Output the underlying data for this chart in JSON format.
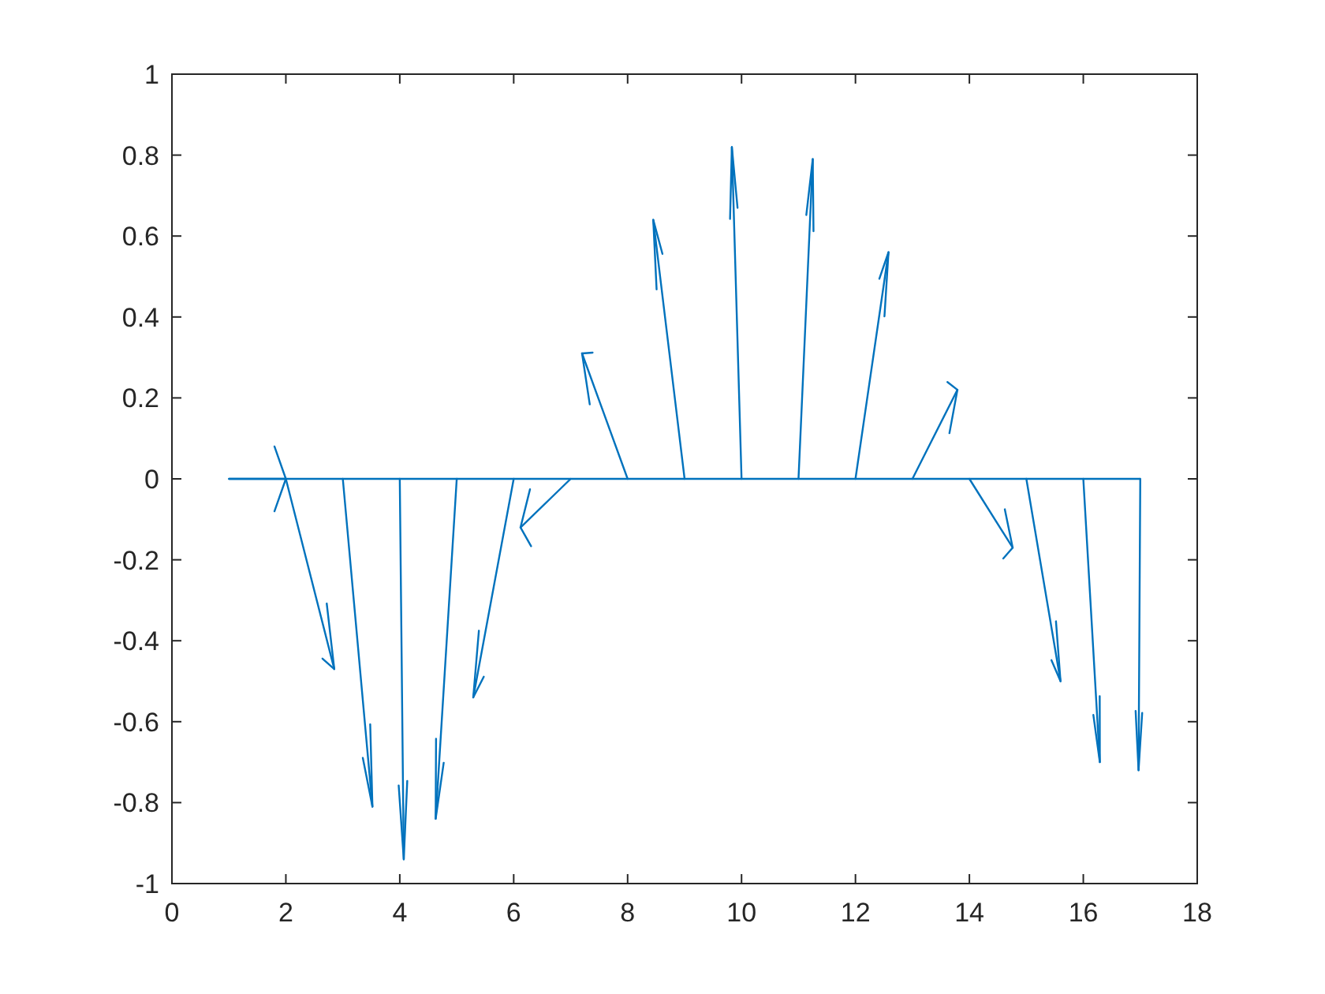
{
  "chart_data": {
    "type": "line",
    "color": "#0072bd",
    "xlim": [
      0,
      18
    ],
    "xticks": [
      0,
      2,
      4,
      6,
      8,
      10,
      12,
      14,
      16,
      18
    ],
    "ylim": [
      -1,
      1
    ],
    "yticks": [
      -1,
      -0.8,
      -0.6,
      -0.4,
      -0.2,
      0,
      0.2,
      0.4,
      0.6,
      0.8,
      1
    ],
    "ref_lines": [
      {
        "axis": "y",
        "value": 0
      }
    ],
    "series": [
      {
        "x": [
          1,
          2
        ],
        "values": [
          0,
          0
        ]
      },
      {
        "x": [
          2,
          2.85
        ],
        "values": [
          0,
          -0.47
        ]
      },
      {
        "x": [
          3,
          3.52
        ],
        "values": [
          0,
          -0.81
        ]
      },
      {
        "x": [
          4,
          4.07
        ],
        "values": [
          0,
          -0.94
        ]
      },
      {
        "x": [
          5,
          4.63
        ],
        "values": [
          0,
          -0.84
        ]
      },
      {
        "x": [
          6,
          5.29
        ],
        "values": [
          0,
          -0.54
        ]
      },
      {
        "x": [
          7,
          6.12
        ],
        "values": [
          0,
          -0.12
        ]
      },
      {
        "x": [
          8,
          7.2
        ],
        "values": [
          0,
          0.31
        ]
      },
      {
        "x": [
          9,
          8.45
        ],
        "values": [
          0,
          0.64
        ]
      },
      {
        "x": [
          10,
          9.83
        ],
        "values": [
          0,
          0.82
        ]
      },
      {
        "x": [
          11,
          11.25
        ],
        "values": [
          0,
          0.79
        ]
      },
      {
        "x": [
          12,
          12.58
        ],
        "values": [
          0,
          0.56
        ]
      },
      {
        "x": [
          13,
          13.79
        ],
        "values": [
          0,
          0.22
        ]
      },
      {
        "x": [
          14,
          14.76
        ],
        "values": [
          0,
          -0.17
        ]
      },
      {
        "x": [
          15,
          15.6
        ],
        "values": [
          0,
          -0.5
        ]
      },
      {
        "x": [
          16,
          16.29
        ],
        "values": [
          0,
          -0.7
        ]
      },
      {
        "x": [
          17,
          16.97
        ],
        "values": [
          0,
          -0.72
        ]
      }
    ]
  }
}
